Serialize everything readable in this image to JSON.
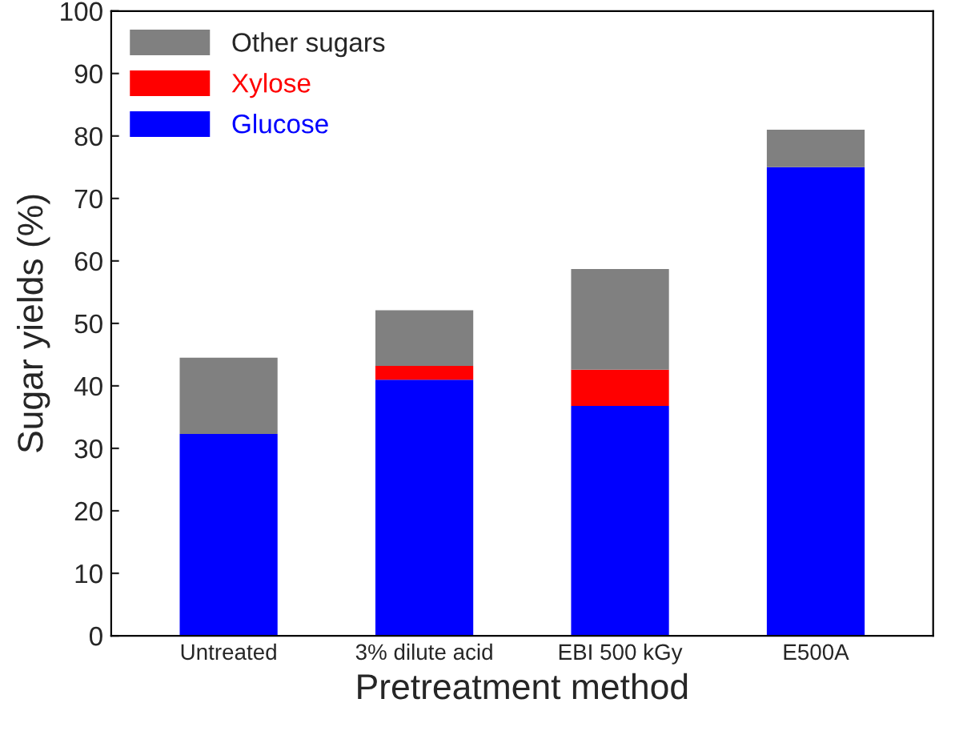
{
  "chart_data": {
    "type": "bar",
    "stacked": true,
    "xlabel": "Pretreatment method",
    "ylabel": "Sugar yields (%)",
    "categories": [
      "Untreated",
      "3% dilute acid",
      "EBI 500 kGy",
      "E500A"
    ],
    "series": [
      {
        "name": "Glucose",
        "color": "#0000ff",
        "values": [
          32.3,
          41.0,
          36.8,
          75.0
        ]
      },
      {
        "name": "Xylose",
        "color": "#ff0000",
        "values": [
          null,
          2.2,
          5.8,
          null
        ]
      },
      {
        "name": "Other sugars",
        "color": "#808080",
        "values": [
          12.2,
          8.9,
          16.1,
          6.0
        ]
      }
    ],
    "ylim": [
      0,
      100
    ],
    "yticks": [
      0,
      10,
      20,
      30,
      40,
      50,
      60,
      70,
      80,
      90,
      100
    ],
    "legend": "top left",
    "grid": false
  }
}
